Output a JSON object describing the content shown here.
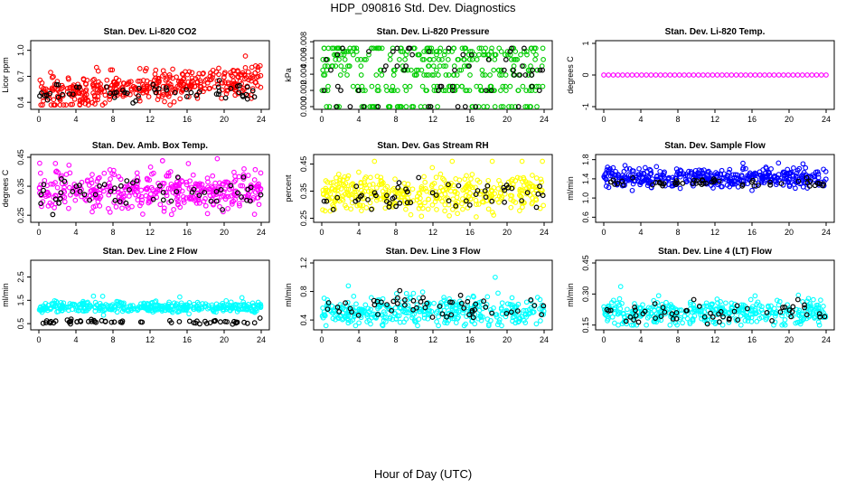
{
  "title": "HDP_090816  Std. Dev. Diagnostics",
  "xlabel": "Hour of Day (UTC)",
  "colors": {
    "reference": "#000000"
  },
  "chart_data": [
    {
      "type": "scatter",
      "title": "Stan. Dev. Li-820 CO2",
      "ylabel": "Licor ppm",
      "color": "#ff0000",
      "xlim": [
        0,
        24
      ],
      "xticks": [
        0,
        4,
        8,
        12,
        16,
        20,
        24
      ],
      "ylim": [
        0.35,
        1.08
      ],
      "yticks": [
        0.4,
        0.7,
        1.0
      ],
      "cloud": {
        "mean": 0.58,
        "sd": 0.09,
        "trend": 0.007,
        "n": 420,
        "clip": [
          0.37,
          1.05
        ]
      },
      "ref": {
        "mean": 0.52,
        "sd": 0.05,
        "n": 55
      }
    },
    {
      "type": "scatter",
      "title": "Stan. Dev. Li-820 Pressure",
      "ylabel": "kPa",
      "color": "#00cc00",
      "xlim": [
        0,
        24
      ],
      "xticks": [
        0,
        4,
        8,
        12,
        16,
        20,
        24
      ],
      "ylim": [
        0,
        0.0078
      ],
      "yticks": [
        0.0,
        0.002,
        0.004,
        0.006,
        0.008
      ],
      "levels": [
        0.0,
        0.002,
        0.0025,
        0.0039,
        0.0045,
        0.005,
        0.0058,
        0.0064,
        0.0068,
        0.0072
      ],
      "cloud": {
        "n": 360
      },
      "ref": {
        "n": 60
      }
    },
    {
      "type": "scatter",
      "title": "Stan. Dev. Li-820 Temp.",
      "ylabel": "degrees C",
      "color": "#ff00ff",
      "xlim": [
        0,
        24
      ],
      "xticks": [
        0,
        4,
        8,
        12,
        16,
        20,
        24
      ],
      "ylim": [
        -1.0,
        1.0
      ],
      "yticks": [
        -1.0,
        0.0,
        1.0
      ],
      "constant": 0.0,
      "cloud": {
        "n": 48
      }
    },
    {
      "type": "scatter",
      "title": "Stan. Dev. Amb. Box Temp.",
      "ylabel": "degrees C",
      "color": "#ff00ff",
      "xlim": [
        0,
        24
      ],
      "xticks": [
        0,
        4,
        8,
        12,
        16,
        20,
        24
      ],
      "ylim": [
        0.235,
        0.45
      ],
      "yticks": [
        0.25,
        0.35,
        0.45
      ],
      "cloud": {
        "mean": 0.335,
        "sd": 0.035,
        "trend": 0,
        "n": 400,
        "clip": [
          0.24,
          0.445
        ]
      },
      "ref": {
        "mean": 0.33,
        "sd": 0.025,
        "n": 55
      }
    },
    {
      "type": "scatter",
      "title": "Stan. Dev. Gas Stream RH",
      "ylabel": "percent",
      "color": "#ffff00",
      "xlim": [
        0,
        24
      ],
      "xticks": [
        0,
        4,
        8,
        12,
        16,
        20,
        24
      ],
      "ylim": [
        0.245,
        0.475
      ],
      "yticks": [
        0.25,
        0.35,
        0.45
      ],
      "cloud": {
        "mean": 0.34,
        "sd": 0.035,
        "trend": 0,
        "n": 400,
        "clip": [
          0.255,
          0.46
        ]
      },
      "ref": {
        "mean": 0.335,
        "sd": 0.025,
        "n": 55
      }
    },
    {
      "type": "scatter",
      "title": "Stan. Dev. Sample Flow",
      "ylabel": "ml/min",
      "color": "#0000ff",
      "xlim": [
        0,
        24
      ],
      "xticks": [
        0,
        4,
        8,
        12,
        16,
        20,
        24
      ],
      "ylim": [
        0.55,
        1.85
      ],
      "yticks": [
        0.6,
        1.0,
        1.4,
        1.8
      ],
      "cloud": {
        "mean": 1.42,
        "sd": 0.1,
        "trend": 0,
        "n": 420,
        "clip": [
          0.6,
          1.85
        ]
      },
      "ref": {
        "mean": 1.32,
        "sd": 0.05,
        "n": 55
      }
    },
    {
      "type": "scatter",
      "title": "Stan. Dev. Line 2 Flow",
      "ylabel": "ml/min",
      "color": "#00ffff",
      "xlim": [
        0,
        24
      ],
      "xticks": [
        0,
        4,
        8,
        12,
        16,
        20,
        24
      ],
      "ylim": [
        0.35,
        3.1
      ],
      "yticks": [
        0.5,
        1.5,
        2.5
      ],
      "cloud": {
        "mean": 1.2,
        "sd": 0.12,
        "trend": 0,
        "n": 380,
        "clip": [
          0.45,
          3.05
        ]
      },
      "ref": {
        "mean": 0.58,
        "sd": 0.05,
        "n": 60
      }
    },
    {
      "type": "scatter",
      "title": "Stan. Dev. Line 3 Flow",
      "ylabel": "ml/min",
      "color": "#00ffff",
      "xlim": [
        0,
        24
      ],
      "xticks": [
        0,
        4,
        8,
        12,
        16,
        20,
        24
      ],
      "ylim": [
        0.3,
        1.2
      ],
      "yticks": [
        0.4,
        0.8,
        1.2
      ],
      "cloud": {
        "mean": 0.52,
        "sd": 0.1,
        "trend": 0,
        "n": 380,
        "clip": [
          0.32,
          1.0
        ]
      },
      "ref": {
        "mean": 0.58,
        "sd": 0.08,
        "n": 55
      }
    },
    {
      "type": "scatter",
      "title": "Stan. Dev. Line 4 (LT) Flow",
      "ylabel": "ml/min",
      "color": "#00ffff",
      "xlim": [
        0,
        24
      ],
      "xticks": [
        0,
        4,
        8,
        12,
        16,
        20,
        24
      ],
      "ylim": [
        0.14,
        0.45
      ],
      "yticks": [
        0.15,
        0.3,
        0.45
      ],
      "cloud": {
        "mean": 0.21,
        "sd": 0.03,
        "trend": 0,
        "n": 380,
        "clip": [
          0.15,
          0.44
        ]
      },
      "ref": {
        "mean": 0.21,
        "sd": 0.025,
        "n": 55
      }
    }
  ]
}
